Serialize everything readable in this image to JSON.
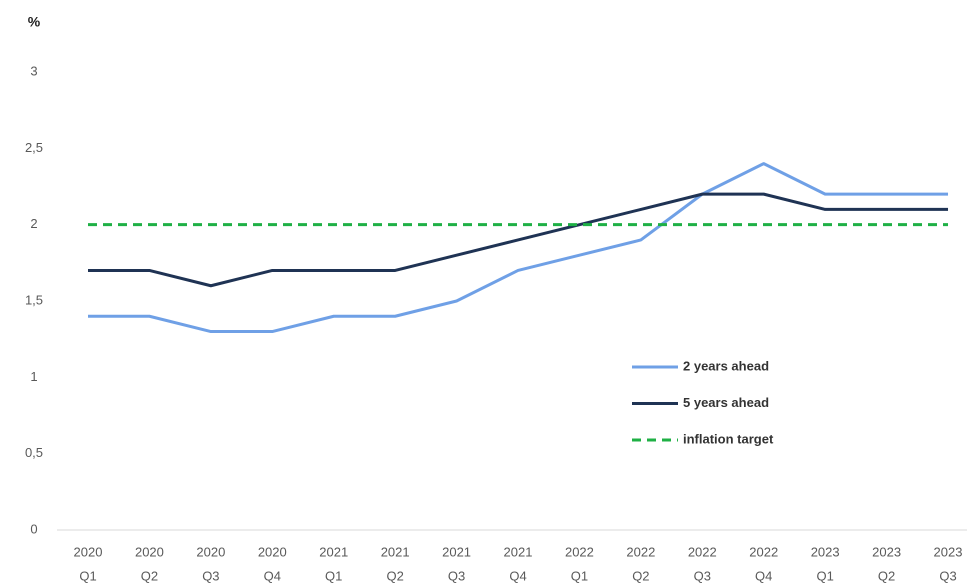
{
  "chart_data": {
    "type": "line",
    "y_label": "%",
    "categories": [
      [
        "2020",
        "Q1"
      ],
      [
        "2020",
        "Q2"
      ],
      [
        "2020",
        "Q3"
      ],
      [
        "2020",
        "Q4"
      ],
      [
        "2021",
        "Q1"
      ],
      [
        "2021",
        "Q2"
      ],
      [
        "2021",
        "Q3"
      ],
      [
        "2021",
        "Q4"
      ],
      [
        "2022",
        "Q1"
      ],
      [
        "2022",
        "Q2"
      ],
      [
        "2022",
        "Q3"
      ],
      [
        "2022",
        "Q4"
      ],
      [
        "2023",
        "Q1"
      ],
      [
        "2023",
        "Q2"
      ],
      [
        "2023",
        "Q3"
      ]
    ],
    "series": [
      {
        "name": "2 years ahead",
        "color": "#6fa0e6",
        "dash": false,
        "values": [
          1.4,
          1.4,
          1.3,
          1.3,
          1.4,
          1.4,
          1.5,
          1.7,
          1.8,
          1.9,
          2.2,
          2.4,
          2.2,
          2.2,
          2.2
        ]
      },
      {
        "name": "5 years ahead",
        "color": "#1f3354",
        "dash": false,
        "values": [
          1.7,
          1.7,
          1.6,
          1.7,
          1.7,
          1.7,
          1.8,
          1.9,
          2.0,
          2.1,
          2.2,
          2.2,
          2.1,
          2.1,
          2.1
        ]
      },
      {
        "name": "inflation target",
        "color": "#1fb045",
        "dash": true,
        "values": [
          2,
          2,
          2,
          2,
          2,
          2,
          2,
          2,
          2,
          2,
          2,
          2,
          2,
          2,
          2
        ]
      }
    ],
    "ylim": [
      0,
      3
    ],
    "yticks": [
      0,
      {
        "value": 0.5,
        "label": "0,5"
      },
      1,
      {
        "value": 1.5,
        "label": "1,5"
      },
      2,
      {
        "value": 2.5,
        "label": "2,5"
      },
      3
    ],
    "grid": false,
    "legend": "right"
  }
}
